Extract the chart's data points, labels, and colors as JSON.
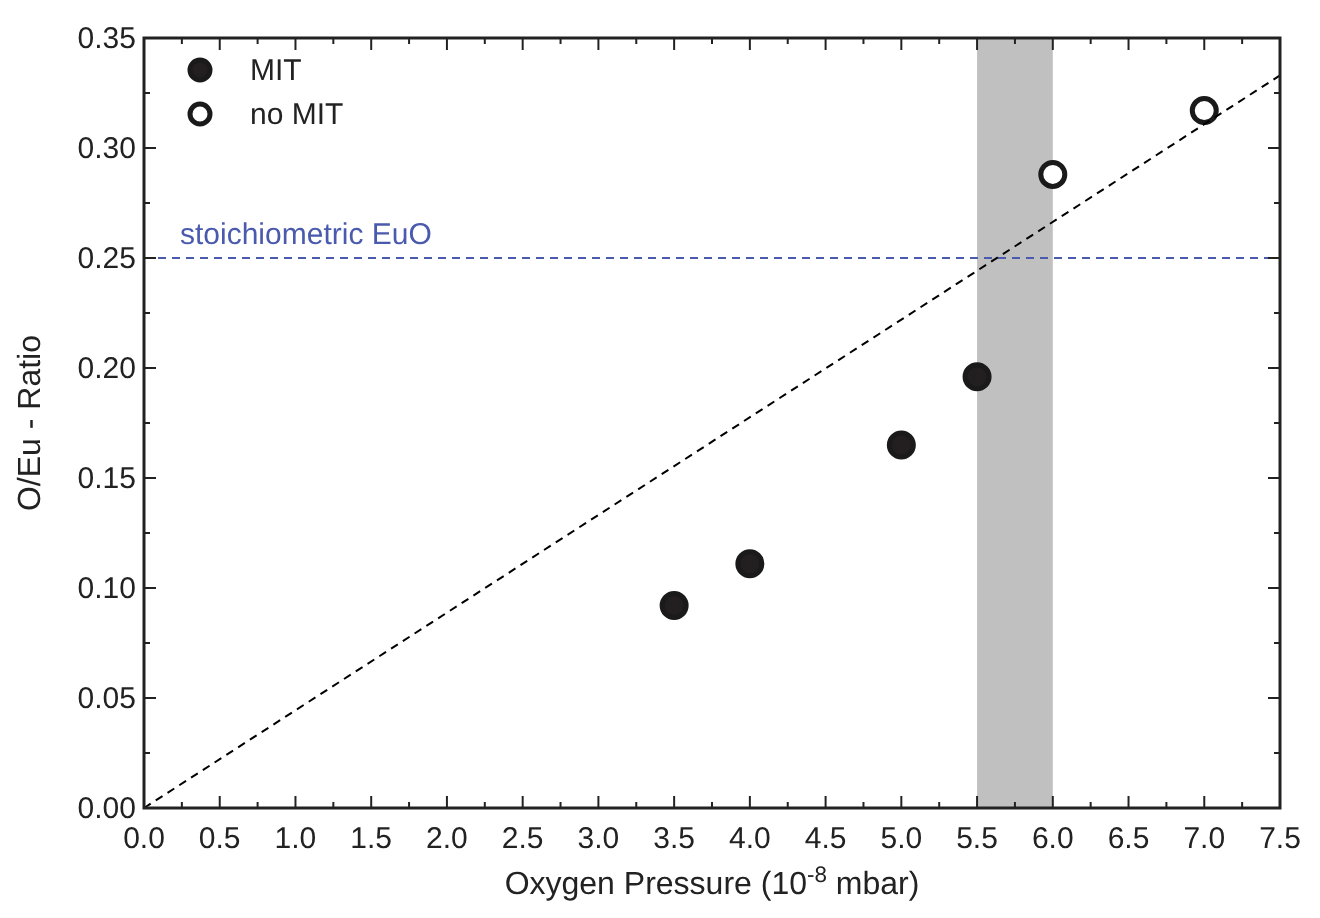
{
  "chart_data": {
    "type": "scatter",
    "xlabel": "Oxygen Pressure (10$^{-8}$ mbar)",
    "ylabel": "O/Eu - Ratio",
    "xlim": [
      0,
      7.5
    ],
    "ylim": [
      0,
      0.35
    ],
    "xticks": [
      {
        "value": 0,
        "label": "0.0"
      },
      {
        "value": 0.25,
        "label": null
      },
      {
        "value": 0.5,
        "label": "0.5"
      },
      {
        "value": 0.75,
        "label": null
      },
      {
        "value": 1,
        "label": "1.0"
      },
      {
        "value": 1.25,
        "label": null
      },
      {
        "value": 1.5,
        "label": "1.5"
      },
      {
        "value": 1.75,
        "label": null
      },
      {
        "value": 2,
        "label": "2.0"
      },
      {
        "value": 2.25,
        "label": null
      },
      {
        "value": 2.5,
        "label": "2.5"
      },
      {
        "value": 2.75,
        "label": null
      },
      {
        "value": 3,
        "label": "3.0"
      },
      {
        "value": 3.25,
        "label": null
      },
      {
        "value": 3.5,
        "label": "3.5"
      },
      {
        "value": 3.75,
        "label": null
      },
      {
        "value": 4,
        "label": "4.0"
      },
      {
        "value": 4.25,
        "label": null
      },
      {
        "value": 4.5,
        "label": "4.5"
      },
      {
        "value": 4.75,
        "label": null
      },
      {
        "value": 5,
        "label": "5.0"
      },
      {
        "value": 5.25,
        "label": null
      },
      {
        "value": 5.5,
        "label": "5.5"
      },
      {
        "value": 5.75,
        "label": null
      },
      {
        "value": 6,
        "label": "6.0"
      },
      {
        "value": 6.25,
        "label": null
      },
      {
        "value": 6.5,
        "label": "6.5"
      },
      {
        "value": 6.75,
        "label": null
      },
      {
        "value": 7,
        "label": "7.0"
      },
      {
        "value": 7.25,
        "label": null
      },
      {
        "value": 7.5,
        "label": "7.5"
      }
    ],
    "yticks": [
      {
        "value": 0,
        "label": "0.00"
      },
      {
        "value": 0.025,
        "label": null
      },
      {
        "value": 0.05,
        "label": "0.05"
      },
      {
        "value": 0.075,
        "label": null
      },
      {
        "value": 0.1,
        "label": "0.10"
      },
      {
        "value": 0.125,
        "label": null
      },
      {
        "value": 0.15,
        "label": "0.15"
      },
      {
        "value": 0.175,
        "label": null
      },
      {
        "value": 0.2,
        "label": "0.20"
      },
      {
        "value": 0.225,
        "label": null
      },
      {
        "value": 0.25,
        "label": "0.25"
      },
      {
        "value": 0.275,
        "label": null
      },
      {
        "value": 0.3,
        "label": "0.30"
      },
      {
        "value": 0.325,
        "label": null
      },
      {
        "value": 0.35,
        "label": "0.35"
      }
    ],
    "series": [
      {
        "name": "MIT",
        "color": "#231f20",
        "marker": "circle",
        "x": [
          3.5,
          4.0,
          5.0,
          5.5
        ],
        "values": [
          0.092,
          0.111,
          0.165,
          0.196
        ]
      },
      {
        "name": "no MIT",
        "color": "#ffffff",
        "marker": "circle",
        "x": [
          6.0,
          7.0
        ],
        "values": [
          0.288,
          0.317
        ]
      },
      {
        "type": "line",
        "color": "#000000",
        "line_style": "dashed",
        "x": [
          0,
          7.5
        ],
        "values": [
          0,
          0.333
        ]
      }
    ],
    "ref_lines": [
      {
        "axis": "y",
        "value": 0.25,
        "label": "stoichiometric EuO",
        "color": "#4a5aad",
        "line_style": "dashed"
      }
    ],
    "bands": [
      {
        "axis": "x",
        "from": 5.5,
        "to": 6.0,
        "color": "#c0c0c0"
      }
    ],
    "grid": false,
    "legend": "top left"
  }
}
